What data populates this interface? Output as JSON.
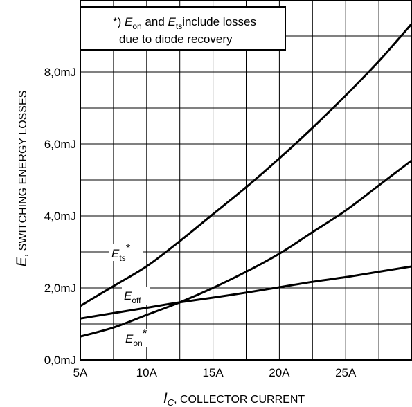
{
  "chart_data": {
    "type": "line",
    "xlim": [
      5,
      30
    ],
    "ylim": [
      0,
      10
    ],
    "grid": true,
    "x_ticks": [
      {
        "value": 5,
        "label": "5A"
      },
      {
        "value": 10,
        "label": "10A"
      },
      {
        "value": 15,
        "label": "15A"
      },
      {
        "value": 20,
        "label": "20A"
      },
      {
        "value": 25,
        "label": "25A"
      }
    ],
    "y_ticks": [
      {
        "value": 0,
        "label": "0,0mJ"
      },
      {
        "value": 2,
        "label": "2,0mJ"
      },
      {
        "value": 4,
        "label": "4,0mJ"
      },
      {
        "value": 6,
        "label": "6,0mJ"
      },
      {
        "value": 8,
        "label": "8,0mJ"
      }
    ],
    "y_minor_step": 1,
    "x_minor_step": 2.5,
    "xlabel": {
      "symbol": "I",
      "subscript": "C",
      "text": ", COLLECTOR CURRENT"
    },
    "ylabel": {
      "symbol": "E",
      "text": ", SWITCHING ENERGY LOSSES"
    },
    "series": [
      {
        "name": "Ets*",
        "symbol": "E",
        "subscript": "ts",
        "suffix": "*",
        "x": [
          5,
          7.5,
          10,
          12.5,
          15,
          17.5,
          20,
          22.5,
          25,
          27.5,
          30
        ],
        "y": [
          1.5,
          2.05,
          2.6,
          3.3,
          4.05,
          4.8,
          5.6,
          6.45,
          7.35,
          8.3,
          9.35
        ]
      },
      {
        "name": "Eoff",
        "symbol": "E",
        "subscript": "off",
        "suffix": "",
        "x": [
          5,
          7.5,
          10,
          12.5,
          15,
          17.5,
          20,
          22.5,
          25,
          27.5,
          30
        ],
        "y": [
          1.15,
          1.3,
          1.45,
          1.6,
          1.73,
          1.87,
          2.02,
          2.17,
          2.3,
          2.45,
          2.6
        ]
      },
      {
        "name": "Eon*",
        "symbol": "E",
        "subscript": "on",
        "suffix": "*",
        "x": [
          5,
          7.5,
          10,
          12.5,
          15,
          17.5,
          20,
          22.5,
          25,
          27.5,
          30
        ],
        "y": [
          0.65,
          0.9,
          1.25,
          1.6,
          2.0,
          2.45,
          2.95,
          3.55,
          4.15,
          4.85,
          5.55
        ]
      }
    ],
    "annotation": {
      "prefix": "*) ",
      "sym1": "E",
      "sub1": "on",
      "mid": " and ",
      "sym2": "E",
      "sub2": "ts",
      "line1_rest": "include losses",
      "line2": "due to diode recovery"
    }
  }
}
